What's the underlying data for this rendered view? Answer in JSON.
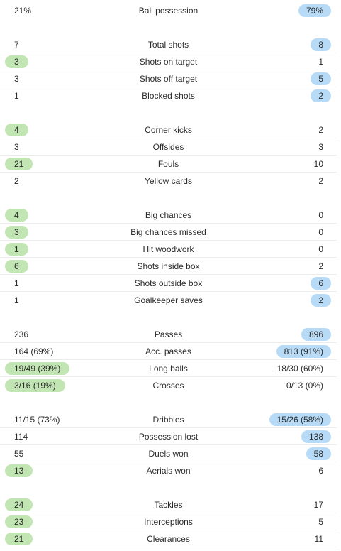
{
  "stats": [
    {
      "label": "Ball possession",
      "home": "21%",
      "away": "79%",
      "highlight": "away"
    },
    {
      "label": "Total shots",
      "home": "7",
      "away": "8",
      "highlight": "away"
    },
    {
      "label": "Shots on target",
      "home": "3",
      "away": "1",
      "highlight": "home"
    },
    {
      "label": "Shots off target",
      "home": "3",
      "away": "5",
      "highlight": "away"
    },
    {
      "label": "Blocked shots",
      "home": "1",
      "away": "2",
      "highlight": "away"
    },
    {
      "label": "Corner kicks",
      "home": "4",
      "away": "2",
      "highlight": "home"
    },
    {
      "label": "Offsides",
      "home": "3",
      "away": "3",
      "highlight": "none"
    },
    {
      "label": "Fouls",
      "home": "21",
      "away": "10",
      "highlight": "home"
    },
    {
      "label": "Yellow cards",
      "home": "2",
      "away": "2",
      "highlight": "none"
    },
    {
      "label": "Big chances",
      "home": "4",
      "away": "0",
      "highlight": "home"
    },
    {
      "label": "Big chances missed",
      "home": "3",
      "away": "0",
      "highlight": "home"
    },
    {
      "label": "Hit woodwork",
      "home": "1",
      "away": "0",
      "highlight": "home"
    },
    {
      "label": "Shots inside box",
      "home": "6",
      "away": "2",
      "highlight": "home"
    },
    {
      "label": "Shots outside box",
      "home": "1",
      "away": "6",
      "highlight": "away"
    },
    {
      "label": "Goalkeeper saves",
      "home": "1",
      "away": "2",
      "highlight": "away"
    },
    {
      "label": "Passes",
      "home": "236",
      "away": "896",
      "highlight": "away"
    },
    {
      "label": "Acc. passes",
      "home": "164 (69%)",
      "away": "813 (91%)",
      "highlight": "away"
    },
    {
      "label": "Long balls",
      "home": "19/49 (39%)",
      "away": "18/30 (60%)",
      "highlight": "home"
    },
    {
      "label": "Crosses",
      "home": "3/16 (19%)",
      "away": "0/13 (0%)",
      "highlight": "home"
    },
    {
      "label": "Dribbles",
      "home": "11/15 (73%)",
      "away": "15/26 (58%)",
      "highlight": "away"
    },
    {
      "label": "Possession lost",
      "home": "114",
      "away": "138",
      "highlight": "away"
    },
    {
      "label": "Duels won",
      "home": "55",
      "away": "58",
      "highlight": "away"
    },
    {
      "label": "Aerials won",
      "home": "13",
      "away": "6",
      "highlight": "home"
    },
    {
      "label": "Tackles",
      "home": "24",
      "away": "17",
      "highlight": "home"
    },
    {
      "label": "Interceptions",
      "home": "23",
      "away": "5",
      "highlight": "home"
    },
    {
      "label": "Clearances",
      "home": "21",
      "away": "11",
      "highlight": "home"
    }
  ],
  "colors": {
    "home_highlight": "#c2e6b3",
    "away_highlight": "#b7dbf7",
    "divider": "#ececec",
    "text": "#2b2b2b"
  }
}
